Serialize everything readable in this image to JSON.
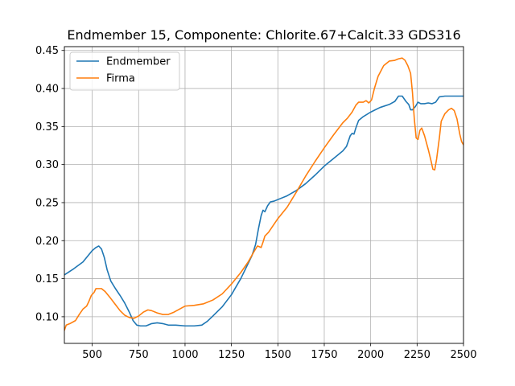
{
  "chart_data": {
    "type": "line",
    "title": "Endmember 15, Componente: Chlorite.67+Calcit.33 GDS316",
    "xlabel": "",
    "ylabel": "",
    "xlim": [
      350,
      2500
    ],
    "ylim": [
      0.065,
      0.455
    ],
    "grid": true,
    "legend_position": "upper-left",
    "x_ticks": [
      500,
      750,
      1000,
      1250,
      1500,
      1750,
      2000,
      2250,
      2500
    ],
    "y_ticks": [
      0.1,
      0.15,
      0.2,
      0.25,
      0.3,
      0.35,
      0.4,
      0.45
    ],
    "x_tick_labels": [
      "500",
      "750",
      "1000",
      "1250",
      "1500",
      "1750",
      "2000",
      "2250",
      "2500"
    ],
    "y_tick_labels": [
      "0.10",
      "0.15",
      "0.20",
      "0.25",
      "0.30",
      "0.35",
      "0.40",
      "0.45"
    ],
    "series": [
      {
        "name": "Endmember",
        "color": "#1f77b4",
        "points": [
          [
            350,
            0.155
          ],
          [
            400,
            0.163
          ],
          [
            450,
            0.172
          ],
          [
            480,
            0.181
          ],
          [
            500,
            0.187
          ],
          [
            520,
            0.191
          ],
          [
            535,
            0.193
          ],
          [
            550,
            0.189
          ],
          [
            565,
            0.178
          ],
          [
            580,
            0.162
          ],
          [
            600,
            0.147
          ],
          [
            625,
            0.137
          ],
          [
            650,
            0.128
          ],
          [
            675,
            0.118
          ],
          [
            700,
            0.106
          ],
          [
            720,
            0.095
          ],
          [
            740,
            0.089
          ],
          [
            760,
            0.088
          ],
          [
            790,
            0.088
          ],
          [
            820,
            0.091
          ],
          [
            850,
            0.092
          ],
          [
            880,
            0.091
          ],
          [
            910,
            0.089
          ],
          [
            950,
            0.089
          ],
          [
            1000,
            0.088
          ],
          [
            1050,
            0.088
          ],
          [
            1090,
            0.089
          ],
          [
            1120,
            0.094
          ],
          [
            1150,
            0.101
          ],
          [
            1200,
            0.113
          ],
          [
            1250,
            0.129
          ],
          [
            1300,
            0.15
          ],
          [
            1330,
            0.165
          ],
          [
            1360,
            0.18
          ],
          [
            1380,
            0.195
          ],
          [
            1395,
            0.215
          ],
          [
            1410,
            0.233
          ],
          [
            1420,
            0.24
          ],
          [
            1430,
            0.238
          ],
          [
            1445,
            0.246
          ],
          [
            1460,
            0.251
          ],
          [
            1480,
            0.252
          ],
          [
            1500,
            0.254
          ],
          [
            1550,
            0.259
          ],
          [
            1600,
            0.266
          ],
          [
            1650,
            0.275
          ],
          [
            1700,
            0.286
          ],
          [
            1750,
            0.298
          ],
          [
            1800,
            0.308
          ],
          [
            1850,
            0.318
          ],
          [
            1870,
            0.324
          ],
          [
            1890,
            0.338
          ],
          [
            1900,
            0.341
          ],
          [
            1910,
            0.34
          ],
          [
            1920,
            0.348
          ],
          [
            1935,
            0.358
          ],
          [
            1960,
            0.363
          ],
          [
            2000,
            0.369
          ],
          [
            2050,
            0.375
          ],
          [
            2100,
            0.379
          ],
          [
            2130,
            0.383
          ],
          [
            2150,
            0.39
          ],
          [
            2170,
            0.39
          ],
          [
            2190,
            0.383
          ],
          [
            2205,
            0.379
          ],
          [
            2215,
            0.372
          ],
          [
            2225,
            0.372
          ],
          [
            2240,
            0.376
          ],
          [
            2255,
            0.382
          ],
          [
            2270,
            0.38
          ],
          [
            2290,
            0.38
          ],
          [
            2310,
            0.381
          ],
          [
            2330,
            0.38
          ],
          [
            2350,
            0.382
          ],
          [
            2370,
            0.389
          ],
          [
            2400,
            0.39
          ],
          [
            2450,
            0.39
          ],
          [
            2500,
            0.39
          ]
        ]
      },
      {
        "name": "Firma",
        "color": "#ff7f0e",
        "points": [
          [
            350,
            0.082
          ],
          [
            360,
            0.089
          ],
          [
            380,
            0.091
          ],
          [
            410,
            0.095
          ],
          [
            430,
            0.103
          ],
          [
            450,
            0.11
          ],
          [
            470,
            0.114
          ],
          [
            480,
            0.119
          ],
          [
            495,
            0.128
          ],
          [
            510,
            0.132
          ],
          [
            520,
            0.137
          ],
          [
            550,
            0.137
          ],
          [
            570,
            0.133
          ],
          [
            600,
            0.124
          ],
          [
            625,
            0.116
          ],
          [
            650,
            0.108
          ],
          [
            675,
            0.102
          ],
          [
            700,
            0.099
          ],
          [
            725,
            0.098
          ],
          [
            750,
            0.101
          ],
          [
            775,
            0.106
          ],
          [
            800,
            0.109
          ],
          [
            820,
            0.108
          ],
          [
            850,
            0.105
          ],
          [
            880,
            0.103
          ],
          [
            910,
            0.103
          ],
          [
            940,
            0.106
          ],
          [
            970,
            0.11
          ],
          [
            1000,
            0.114
          ],
          [
            1050,
            0.115
          ],
          [
            1100,
            0.117
          ],
          [
            1150,
            0.122
          ],
          [
            1200,
            0.13
          ],
          [
            1250,
            0.143
          ],
          [
            1300,
            0.158
          ],
          [
            1340,
            0.172
          ],
          [
            1370,
            0.185
          ],
          [
            1390,
            0.193
          ],
          [
            1410,
            0.191
          ],
          [
            1420,
            0.198
          ],
          [
            1430,
            0.206
          ],
          [
            1450,
            0.211
          ],
          [
            1475,
            0.22
          ],
          [
            1500,
            0.229
          ],
          [
            1550,
            0.244
          ],
          [
            1600,
            0.264
          ],
          [
            1650,
            0.285
          ],
          [
            1700,
            0.304
          ],
          [
            1750,
            0.322
          ],
          [
            1800,
            0.339
          ],
          [
            1850,
            0.355
          ],
          [
            1875,
            0.361
          ],
          [
            1900,
            0.369
          ],
          [
            1920,
            0.378
          ],
          [
            1935,
            0.382
          ],
          [
            1960,
            0.382
          ],
          [
            1975,
            0.384
          ],
          [
            1990,
            0.381
          ],
          [
            2005,
            0.385
          ],
          [
            2020,
            0.4
          ],
          [
            2040,
            0.416
          ],
          [
            2070,
            0.43
          ],
          [
            2100,
            0.436
          ],
          [
            2130,
            0.437
          ],
          [
            2150,
            0.439
          ],
          [
            2170,
            0.44
          ],
          [
            2185,
            0.437
          ],
          [
            2200,
            0.43
          ],
          [
            2215,
            0.42
          ],
          [
            2225,
            0.395
          ],
          [
            2235,
            0.36
          ],
          [
            2245,
            0.335
          ],
          [
            2255,
            0.333
          ],
          [
            2265,
            0.345
          ],
          [
            2275,
            0.348
          ],
          [
            2290,
            0.338
          ],
          [
            2310,
            0.32
          ],
          [
            2325,
            0.305
          ],
          [
            2335,
            0.294
          ],
          [
            2345,
            0.293
          ],
          [
            2355,
            0.307
          ],
          [
            2370,
            0.335
          ],
          [
            2380,
            0.357
          ],
          [
            2400,
            0.367
          ],
          [
            2420,
            0.372
          ],
          [
            2435,
            0.374
          ],
          [
            2450,
            0.371
          ],
          [
            2465,
            0.36
          ],
          [
            2480,
            0.34
          ],
          [
            2490,
            0.33
          ],
          [
            2500,
            0.326
          ]
        ]
      }
    ]
  }
}
